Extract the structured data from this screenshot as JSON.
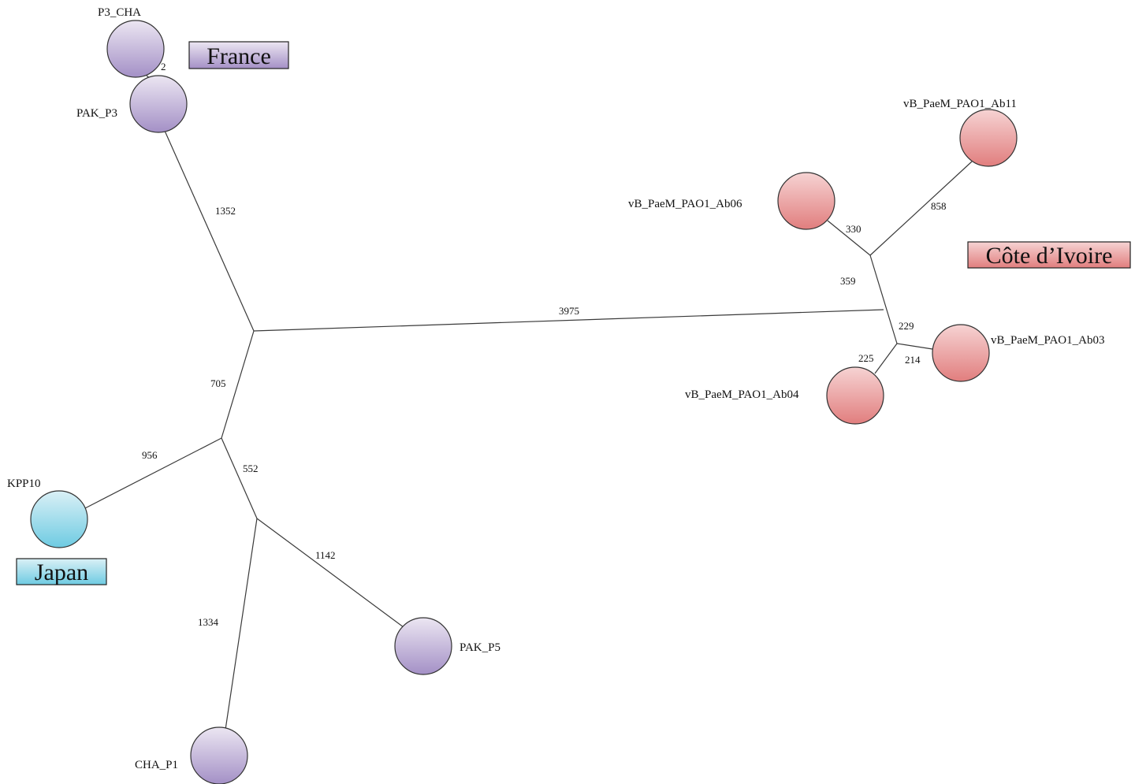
{
  "colors": {
    "france_top": "#ece6f2",
    "france_bottom": "#a490c6",
    "cote_top": "#f6d3d3",
    "cote_bottom": "#e17e7e",
    "japan_top": "#daf0f6",
    "japan_bottom": "#6ecbe2",
    "edge": "#3a3a3a"
  },
  "regions": {
    "france": "France",
    "cote_divoire": "Côte d’Ivoire",
    "japan": "Japan"
  },
  "nodes": {
    "p3_cha": "P3_CHA",
    "pak_p3": "PAK_P3",
    "kpp10": "KPP10",
    "pak_p5": "PAK_P5",
    "cha_p1": "CHA_P1",
    "ab11": "vB_PaeM_PAO1_Ab11",
    "ab06": "vB_PaeM_PAO1_Ab06",
    "ab03": "vB_PaeM_PAO1_Ab03",
    "ab04": "vB_PaeM_PAO1_Ab04"
  },
  "distances": {
    "p3cha_pakp3": "2",
    "pakp3_branch": "1352",
    "main_link": "3975",
    "upper_lower": "705",
    "kpp10": "956",
    "lower_pak_cha": "552",
    "pak_p5": "1142",
    "cha_p1": "1334",
    "ab06": "330",
    "ab11": "858",
    "cote_upper_lower": "359",
    "cote_inner": "229",
    "ab04": "225",
    "ab03": "214"
  }
}
